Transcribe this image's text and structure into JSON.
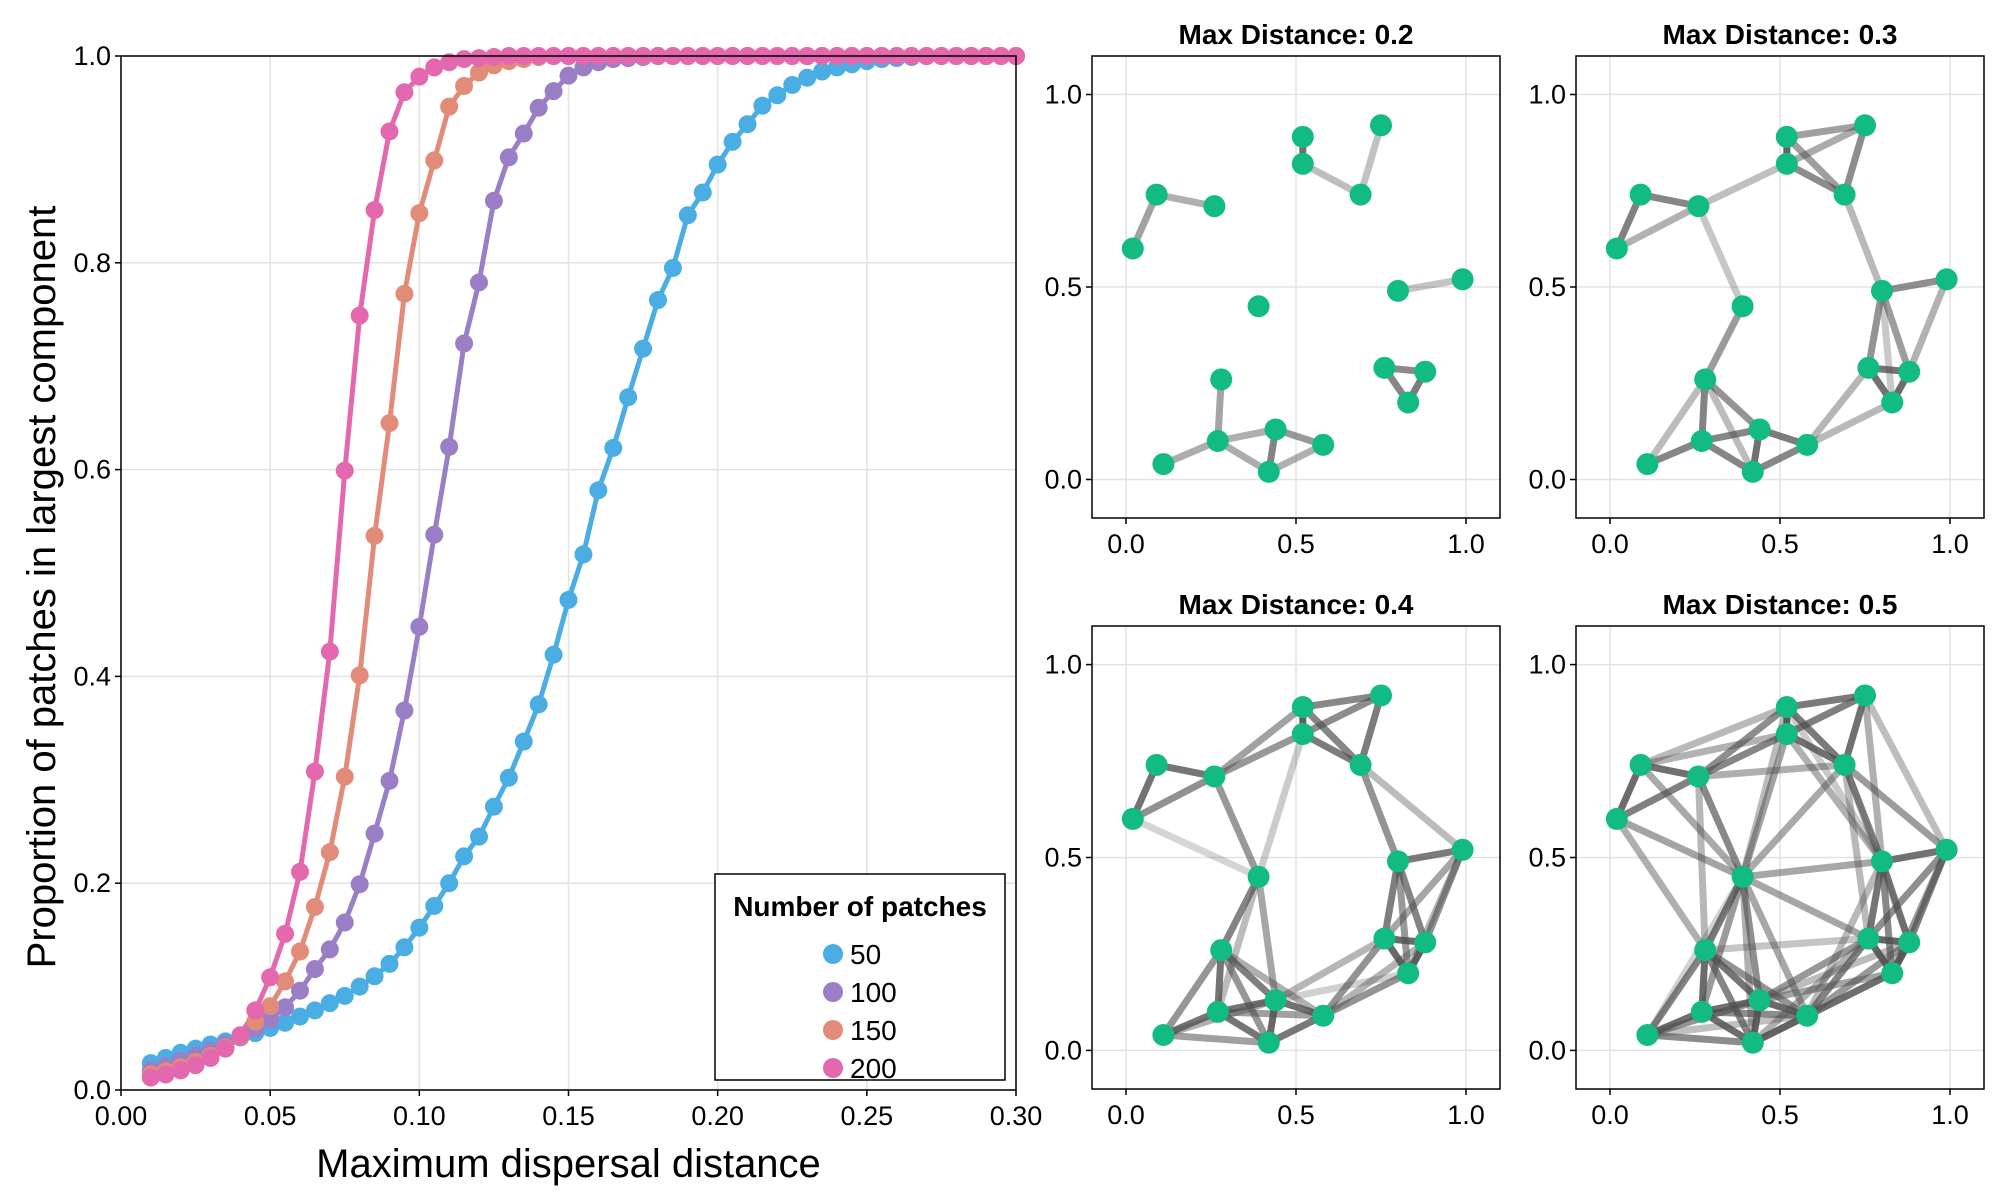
{
  "chart_data": [
    {
      "type": "line",
      "title": "",
      "xlabel": "Maximum dispersal distance",
      "ylabel": "Proportion of patches in largest component",
      "xlim": [
        0.0,
        0.3
      ],
      "ylim": [
        0.0,
        1.0
      ],
      "xticks": [
        "0.00",
        "0.05",
        "0.10",
        "0.15",
        "0.20",
        "0.25",
        "0.30"
      ],
      "yticks": [
        "0.0",
        "0.2",
        "0.4",
        "0.6",
        "0.8",
        "1.0"
      ],
      "grid": true,
      "legend": {
        "title": "Number of patches",
        "position": "bottom-right"
      },
      "x": {
        "start": 0.01,
        "step": 0.005,
        "count": 59
      },
      "series": [
        {
          "name": "50",
          "color": "#4aade3",
          "values": [
            0.026,
            0.031,
            0.036,
            0.04,
            0.044,
            0.047,
            0.051,
            0.055,
            0.06,
            0.065,
            0.071,
            0.077,
            0.084,
            0.091,
            0.1,
            0.11,
            0.122,
            0.138,
            0.157,
            0.178,
            0.2,
            0.226,
            0.245,
            0.274,
            0.302,
            0.337,
            0.373,
            0.421,
            0.474,
            0.518,
            0.58,
            0.621,
            0.67,
            0.717,
            0.764,
            0.795,
            0.846,
            0.868,
            0.895,
            0.917,
            0.934,
            0.952,
            0.962,
            0.972,
            0.979,
            0.985,
            0.989,
            0.992,
            0.995,
            0.997,
            0.998,
            0.999,
            1.0,
            1.0,
            1.0,
            1.0,
            1.0,
            1.0,
            1.0
          ]
        },
        {
          "name": "100",
          "color": "#9a7fc6",
          "values": [
            0.019,
            0.023,
            0.028,
            0.033,
            0.038,
            0.044,
            0.051,
            0.059,
            0.068,
            0.08,
            0.096,
            0.117,
            0.136,
            0.162,
            0.199,
            0.248,
            0.299,
            0.367,
            0.448,
            0.537,
            0.622,
            0.722,
            0.781,
            0.86,
            0.902,
            0.925,
            0.95,
            0.966,
            0.981,
            0.989,
            0.994,
            0.997,
            0.998,
            0.999,
            1.0,
            1.0,
            1.0,
            1.0,
            1.0,
            1.0,
            1.0,
            1.0,
            1.0,
            1.0,
            1.0,
            1.0,
            1.0,
            1.0,
            1.0,
            1.0,
            1.0,
            1.0,
            1.0,
            1.0,
            1.0,
            1.0,
            1.0,
            1.0,
            1.0
          ]
        },
        {
          "name": "150",
          "color": "#e28b79",
          "values": [
            0.015,
            0.018,
            0.022,
            0.027,
            0.033,
            0.041,
            0.052,
            0.066,
            0.081,
            0.105,
            0.134,
            0.177,
            0.23,
            0.303,
            0.401,
            0.536,
            0.645,
            0.77,
            0.848,
            0.899,
            0.951,
            0.971,
            0.984,
            0.991,
            0.995,
            0.997,
            0.999,
            1.0,
            1.0,
            1.0,
            1.0,
            1.0,
            1.0,
            1.0,
            1.0,
            1.0,
            1.0,
            1.0,
            1.0,
            1.0,
            1.0,
            1.0,
            1.0,
            1.0,
            1.0,
            1.0,
            1.0,
            1.0,
            1.0,
            1.0,
            1.0,
            1.0,
            1.0,
            1.0,
            1.0,
            1.0,
            1.0,
            1.0,
            1.0
          ]
        },
        {
          "name": "200",
          "color": "#e468ae",
          "values": [
            0.012,
            0.015,
            0.019,
            0.024,
            0.031,
            0.04,
            0.053,
            0.077,
            0.109,
            0.151,
            0.211,
            0.308,
            0.424,
            0.599,
            0.749,
            0.851,
            0.927,
            0.965,
            0.98,
            0.989,
            0.994,
            0.997,
            0.998,
            0.999,
            1.0,
            1.0,
            1.0,
            1.0,
            1.0,
            1.0,
            1.0,
            1.0,
            1.0,
            1.0,
            1.0,
            1.0,
            1.0,
            1.0,
            1.0,
            1.0,
            1.0,
            1.0,
            1.0,
            1.0,
            1.0,
            1.0,
            1.0,
            1.0,
            1.0,
            1.0,
            1.0,
            1.0,
            1.0,
            1.0,
            1.0,
            1.0,
            1.0,
            1.0,
            1.0
          ]
        }
      ]
    },
    {
      "type": "network",
      "node_color": "#12bb83",
      "edge_color": "#505050",
      "xlim": [
        -0.1,
        1.1
      ],
      "ylim": [
        -0.1,
        1.1
      ],
      "xticks": [
        "0.0",
        "0.5",
        "1.0"
      ],
      "yticks": [
        "0.0",
        "0.5",
        "1.0"
      ],
      "nodes": [
        [
          0.02,
          0.6
        ],
        [
          0.09,
          0.74
        ],
        [
          0.26,
          0.71
        ],
        [
          0.52,
          0.89
        ],
        [
          0.52,
          0.82
        ],
        [
          0.75,
          0.92
        ],
        [
          0.69,
          0.74
        ],
        [
          0.99,
          0.52
        ],
        [
          0.8,
          0.49
        ],
        [
          0.39,
          0.45
        ],
        [
          0.28,
          0.26
        ],
        [
          0.76,
          0.29
        ],
        [
          0.88,
          0.28
        ],
        [
          0.83,
          0.2
        ],
        [
          0.27,
          0.1
        ],
        [
          0.44,
          0.13
        ],
        [
          0.58,
          0.09
        ],
        [
          0.11,
          0.04
        ],
        [
          0.42,
          0.02
        ]
      ],
      "panels": [
        {
          "title": "Max Distance: 0.2",
          "max_distance": 0.2
        },
        {
          "title": "Max Distance: 0.3",
          "max_distance": 0.3
        },
        {
          "title": "Max Distance: 0.4",
          "max_distance": 0.4
        },
        {
          "title": "Max Distance: 0.5",
          "max_distance": 0.5
        }
      ]
    }
  ]
}
